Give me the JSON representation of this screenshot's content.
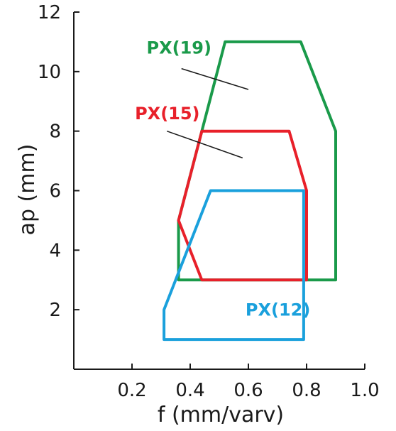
{
  "chart_data": {
    "type": "area",
    "title": "",
    "xlabel": "f (mm/varv)",
    "ylabel": "ap (mm)",
    "xlim": [
      0,
      1.0
    ],
    "ylim": [
      0,
      12
    ],
    "x_ticks": [
      0.2,
      0.4,
      0.6,
      0.8,
      1.0
    ],
    "x_tick_labels": [
      "0.2",
      "0.4",
      "0.6",
      "0.8",
      "1.0"
    ],
    "y_ticks": [
      2,
      4,
      6,
      8,
      10,
      12
    ],
    "y_tick_labels": [
      "2",
      "4",
      "6",
      "8",
      "10",
      "12"
    ],
    "grid": false,
    "legend": "none",
    "series": [
      {
        "name": "PX(19)",
        "color": "#1a9a4a",
        "polygon": [
          [
            0.36,
            5.0
          ],
          [
            0.52,
            11.0
          ],
          [
            0.78,
            11.0
          ],
          [
            0.9,
            8.0
          ],
          [
            0.9,
            3.0
          ],
          [
            0.36,
            3.0
          ]
        ],
        "label_anchor": [
          0.25,
          10.6
        ],
        "leader": [
          [
            0.37,
            10.1
          ],
          [
            0.6,
            9.4
          ]
        ]
      },
      {
        "name": "PX(15)",
        "color": "#e8202a",
        "polygon": [
          [
            0.36,
            5.0
          ],
          [
            0.44,
            8.0
          ],
          [
            0.74,
            8.0
          ],
          [
            0.8,
            6.0
          ],
          [
            0.8,
            3.0
          ],
          [
            0.44,
            3.0
          ]
        ],
        "label_anchor": [
          0.21,
          8.4
        ],
        "leader": [
          [
            0.32,
            8.0
          ],
          [
            0.58,
            7.1
          ]
        ]
      },
      {
        "name": "PX(12)",
        "color": "#1aa0dc",
        "polygon": [
          [
            0.31,
            2.0
          ],
          [
            0.47,
            6.0
          ],
          [
            0.79,
            6.0
          ],
          [
            0.79,
            1.0
          ],
          [
            0.31,
            1.0
          ]
        ],
        "label_anchor": [
          0.59,
          1.8
        ],
        "leader": []
      }
    ]
  }
}
